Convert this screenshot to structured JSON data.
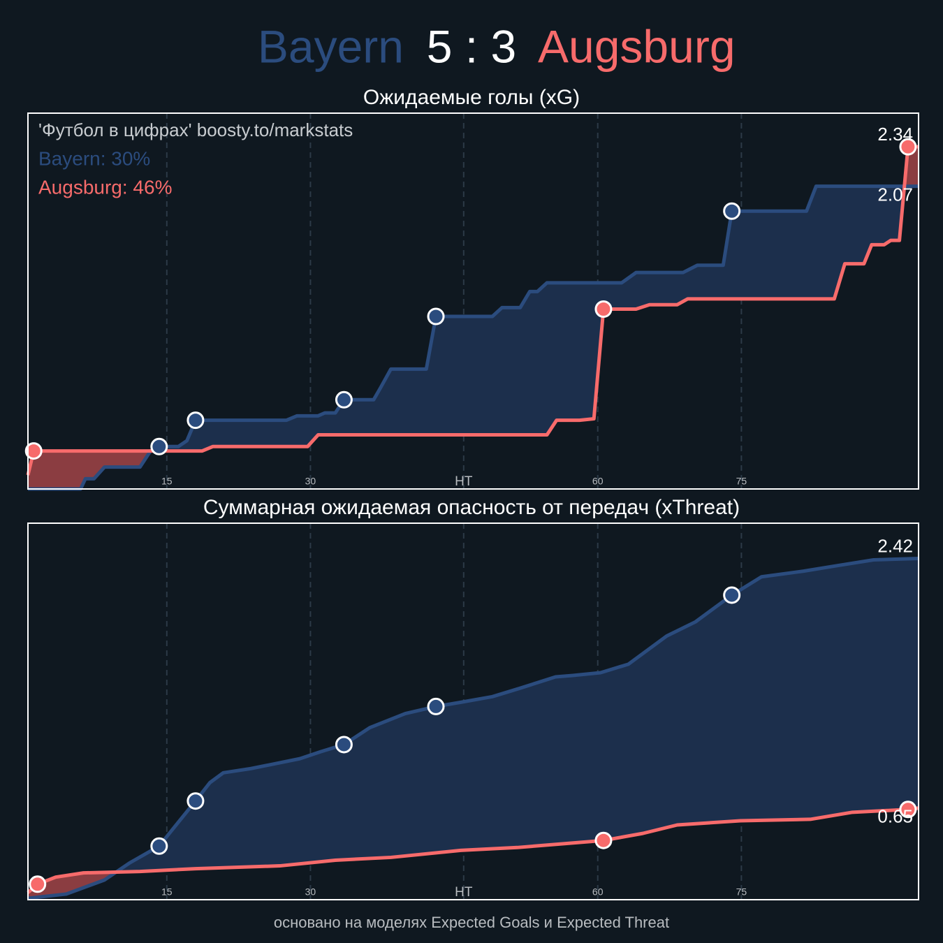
{
  "header": {
    "home": "Bayern",
    "score": "5 : 3",
    "away": "Augsburg"
  },
  "footer": "основано на моделях Expected Goals и Expected Threat",
  "chart_data": [
    {
      "type": "line",
      "title": "Ожидаемые голы (xG)",
      "xlim": [
        0.5,
        93.5
      ],
      "ylim": [
        0,
        2.57
      ],
      "xticks": [
        15,
        30,
        {
          "value": 46,
          "label": "HT"
        },
        60,
        75
      ],
      "grid": true,
      "annotations": [
        {
          "text": "'Футбол в цифрах' boosty.to/markstats",
          "color": "#c8ccd0"
        },
        {
          "text": "Bayern: 30%",
          "color": "#2b4c7e"
        },
        {
          "text": "Augsburg: 46%",
          "color": "#f76b6b"
        }
      ],
      "series": [
        {
          "color": "#2b4c7e",
          "fill": "#1c2f4c",
          "x": [
            0.5,
            6.0,
            6.5,
            7.4,
            8.5,
            12.2,
            13.3,
            14.2,
            16.2,
            17.1,
            18.0,
            27.5,
            28.6,
            30.8,
            31.5,
            32.6,
            33.5,
            36.6,
            37.3,
            38.4,
            42.1,
            43.1,
            49.0,
            50.0,
            51.9,
            52.9,
            53.7,
            54.7,
            62.5,
            64.0,
            68.9,
            70.4,
            73.1,
            74.0,
            81.8,
            82.8,
            93.5
          ],
          "values": [
            0,
            0,
            0.07,
            0.07,
            0.15,
            0.15,
            0.26,
            0.29,
            0.29,
            0.33,
            0.47,
            0.47,
            0.5,
            0.5,
            0.52,
            0.52,
            0.61,
            0.61,
            0.69,
            0.82,
            0.82,
            1.18,
            1.18,
            1.24,
            1.24,
            1.35,
            1.35,
            1.41,
            1.41,
            1.48,
            1.48,
            1.53,
            1.53,
            1.9,
            1.9,
            2.07,
            2.07
          ],
          "goals_x": [
            14.2,
            18.0,
            33.5,
            43.1,
            74.0
          ],
          "goals_values": [
            0.29,
            0.47,
            0.61,
            1.18,
            1.9
          ]
        },
        {
          "color": "#f76b6b",
          "fill": "#8b3d41",
          "x": [
            0.5,
            1.1,
            18.7,
            19.8,
            29.7,
            30.8,
            54.7,
            55.7,
            58.1,
            59.6,
            60.6,
            64.0,
            65.4,
            68.3,
            69.4,
            84.7,
            85.8,
            87.8,
            88.6,
            89.9,
            90.6,
            91.5,
            92.4,
            93.5
          ],
          "values": [
            0.095,
            0.26,
            0.26,
            0.29,
            0.29,
            0.37,
            0.37,
            0.47,
            0.47,
            0.48,
            1.23,
            1.23,
            1.26,
            1.26,
            1.3,
            1.3,
            1.54,
            1.54,
            1.67,
            1.67,
            1.7,
            1.7,
            2.34,
            2.34
          ],
          "goals_x": [
            1.1,
            60.6,
            92.4
          ],
          "goals_values": [
            0.26,
            1.23,
            2.34
          ]
        }
      ]
    },
    {
      "type": "line",
      "title": "Суммарная ожидаемая опасность от передач (xThreat)",
      "xlim": [
        0.5,
        93.5
      ],
      "ylim": [
        0,
        2.67
      ],
      "xticks": [
        15,
        30,
        {
          "value": 46,
          "label": "HT"
        },
        60,
        75
      ],
      "grid": true,
      "series": [
        {
          "color": "#2b4c7e",
          "fill": "#1c2f4c",
          "x": [
            0.5,
            4.5,
            8.5,
            11.1,
            14.2,
            15.5,
            18.0,
            19.5,
            20.9,
            23.8,
            26.0,
            28.9,
            31.1,
            33.5,
            36.2,
            39.9,
            43.1,
            45.7,
            49.0,
            51.9,
            55.6,
            57.4,
            60.3,
            63.2,
            67.2,
            70.2,
            74.0,
            77.1,
            81.5,
            85.1,
            88.8,
            93.5
          ],
          "values": [
            0.01,
            0.04,
            0.14,
            0.26,
            0.38,
            0.49,
            0.7,
            0.83,
            0.9,
            0.93,
            0.96,
            1.0,
            1.05,
            1.1,
            1.22,
            1.32,
            1.37,
            1.4,
            1.44,
            1.5,
            1.58,
            1.59,
            1.61,
            1.67,
            1.87,
            1.97,
            2.16,
            2.29,
            2.33,
            2.37,
            2.41,
            2.42
          ],
          "goals_x": [
            14.2,
            18.0,
            33.5,
            43.1,
            74.0
          ],
          "goals_values": [
            0.38,
            0.7,
            1.1,
            1.37,
            2.16
          ]
        },
        {
          "color": "#f76b6b",
          "fill": "#8b3d41",
          "x": [
            0.5,
            1.5,
            3.4,
            6.3,
            12.2,
            18.0,
            26.8,
            32.6,
            38.4,
            45.7,
            51.6,
            60.6,
            64.7,
            68.3,
            74.9,
            82.2,
            86.6,
            92.4,
            93.5
          ],
          "values": [
            0.05,
            0.11,
            0.16,
            0.19,
            0.2,
            0.22,
            0.24,
            0.28,
            0.3,
            0.35,
            0.37,
            0.42,
            0.47,
            0.53,
            0.56,
            0.57,
            0.62,
            0.64,
            0.65
          ],
          "goals_x": [
            1.5,
            60.6,
            92.4
          ],
          "goals_values": [
            0.11,
            0.42,
            0.64
          ]
        }
      ]
    }
  ]
}
